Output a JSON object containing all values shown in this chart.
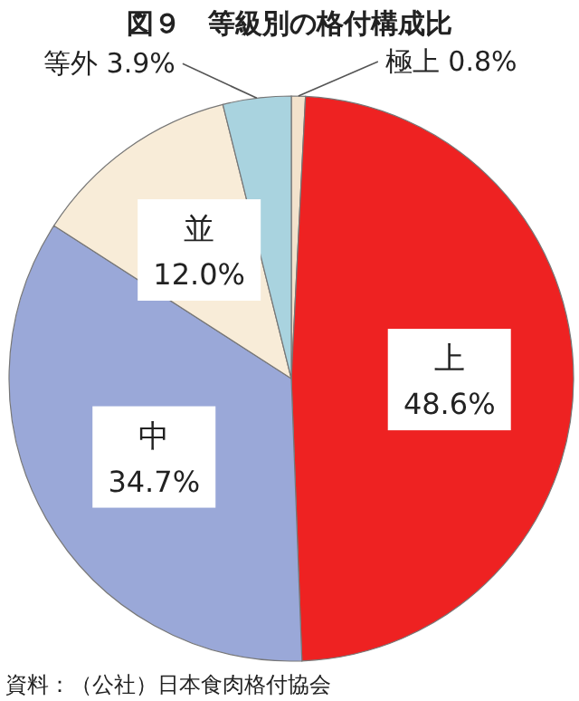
{
  "chart_data": {
    "type": "pie",
    "title": "図９　等級別の格付構成比",
    "categories": [
      "極上",
      "上",
      "中",
      "並",
      "等外"
    ],
    "values": [
      0.8,
      48.6,
      34.7,
      12.0,
      3.9
    ],
    "value_labels": [
      "0.8%",
      "48.6%",
      "34.7%",
      "12.0%",
      "3.9%"
    ],
    "colors": [
      "#f3e2cc",
      "#ee2222",
      "#9aa8d8",
      "#f8ecd8",
      "#a9d3df"
    ],
    "annotations": [
      "資料：（公社）日本食肉格付協会"
    ]
  }
}
